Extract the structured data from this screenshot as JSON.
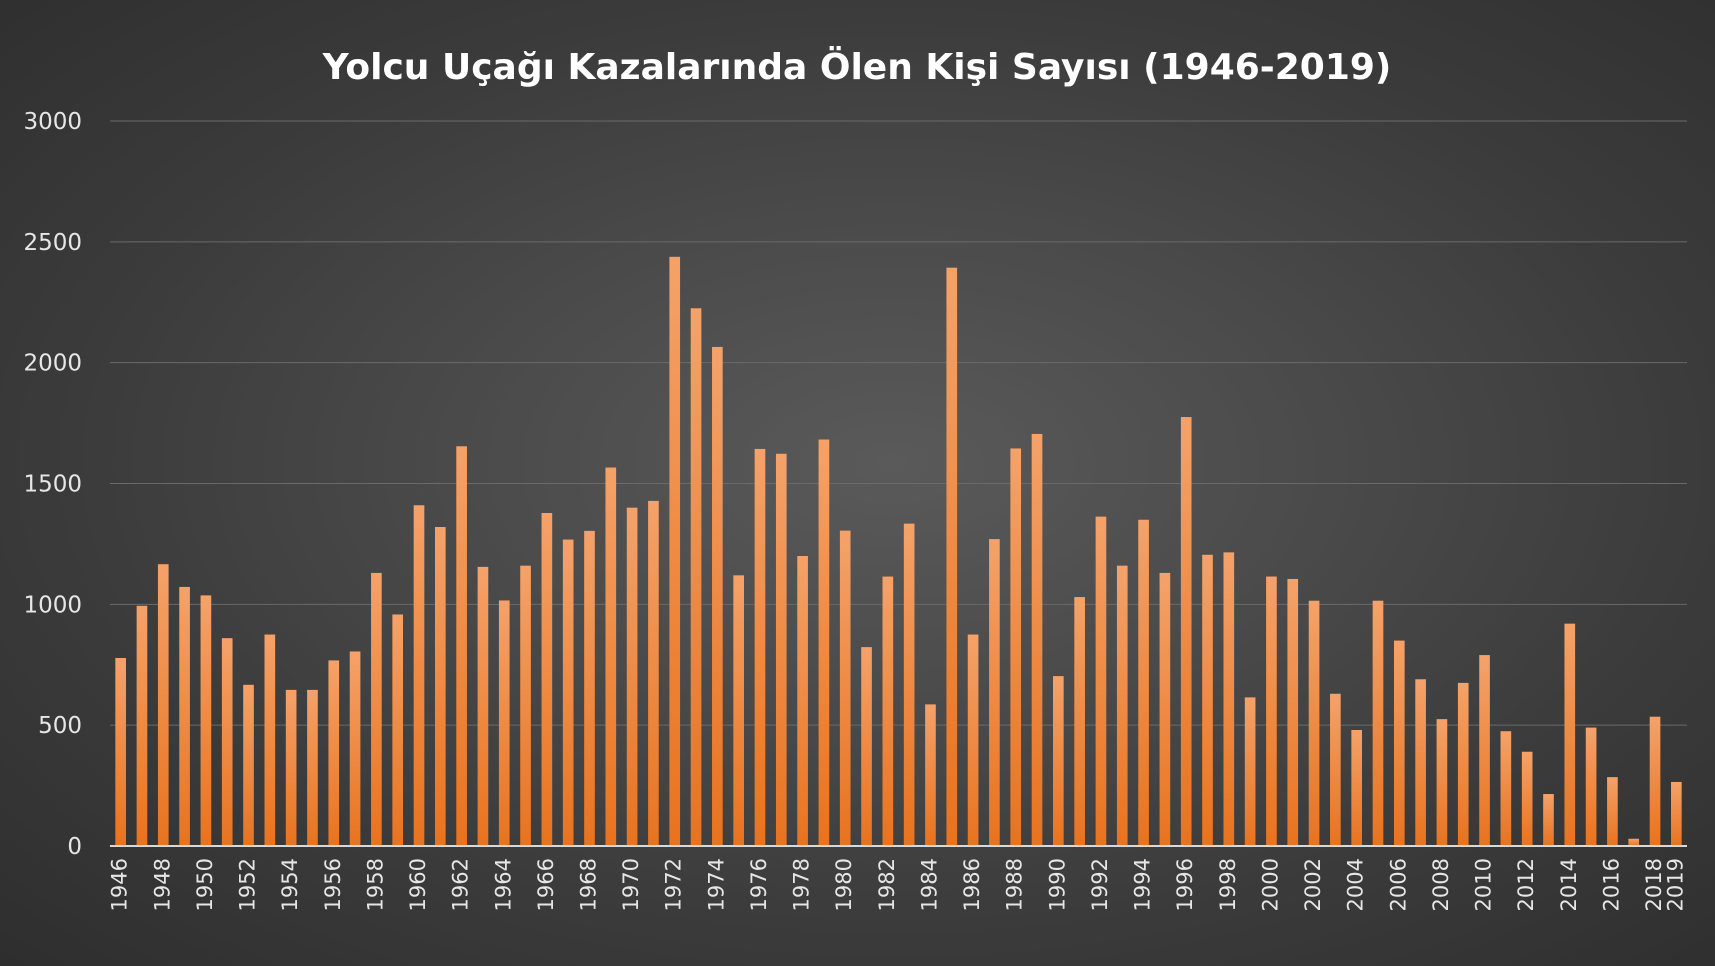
{
  "chart_data": {
    "type": "bar",
    "title": "Yolcu Uçağı Kazalarında Ölen Kişi Sayısı (1946-2019)",
    "xlabel": "",
    "ylabel": "",
    "ylim": [
      0,
      3000
    ],
    "y_ticks": [
      "0",
      "500",
      "1000",
      "1500",
      "2000",
      "2500",
      "3000"
    ],
    "grid": true,
    "legend": "none",
    "bar_color": "#ed7d31",
    "categories": [
      "1946",
      "1947",
      "1948",
      "1949",
      "1950",
      "1951",
      "1952",
      "1953",
      "1954",
      "1955",
      "1956",
      "1957",
      "1958",
      "1959",
      "1960",
      "1961",
      "1962",
      "1963",
      "1964",
      "1965",
      "1966",
      "1967",
      "1968",
      "1969",
      "1970",
      "1971",
      "1972",
      "1973",
      "1974",
      "1975",
      "1976",
      "1977",
      "1978",
      "1979",
      "1980",
      "1981",
      "1982",
      "1983",
      "1984",
      "1985",
      "1986",
      "1987",
      "1988",
      "1989",
      "1990",
      "1991",
      "1992",
      "1993",
      "1994",
      "1995",
      "1996",
      "1997",
      "1998",
      "1999",
      "2000",
      "2001",
      "2002",
      "2003",
      "2004",
      "2005",
      "2006",
      "2007",
      "2008",
      "2009",
      "2010",
      "2011",
      "2012",
      "2013",
      "2014",
      "2015",
      "2016",
      "2017",
      "2018",
      "2019"
    ],
    "x_tick_labels": [
      "1946",
      "1948",
      "1950",
      "1952",
      "1954",
      "1956",
      "1958",
      "1960",
      "1962",
      "1964",
      "1966",
      "1968",
      "1970",
      "1972",
      "1974",
      "1976",
      "1978",
      "1980",
      "1982",
      "1984",
      "1986",
      "1988",
      "1990",
      "1992",
      "1994",
      "1996",
      "1998",
      "2000",
      "2002",
      "2004",
      "2006",
      "2008",
      "2010",
      "2012",
      "2014",
      "2016",
      "2018",
      "2019"
    ],
    "values": [
      778,
      994,
      1166,
      1072,
      1037,
      860,
      667,
      875,
      646,
      646,
      768,
      805,
      1130,
      958,
      1410,
      1320,
      1654,
      1155,
      1016,
      1160,
      1378,
      1268,
      1304,
      1566,
      1400,
      1428,
      2438,
      2225,
      2065,
      1120,
      1643,
      1623,
      1200,
      1682,
      1305,
      823,
      1115,
      1334,
      586,
      2393,
      875,
      1270,
      1645,
      1705,
      703,
      1030,
      1363,
      1160,
      1350,
      1130,
      1775,
      1205,
      1215,
      615,
      1115,
      1105,
      1015,
      630,
      480,
      1015,
      850,
      690,
      525,
      675,
      790,
      475,
      390,
      215,
      920,
      490,
      285,
      30,
      535,
      265
    ]
  }
}
